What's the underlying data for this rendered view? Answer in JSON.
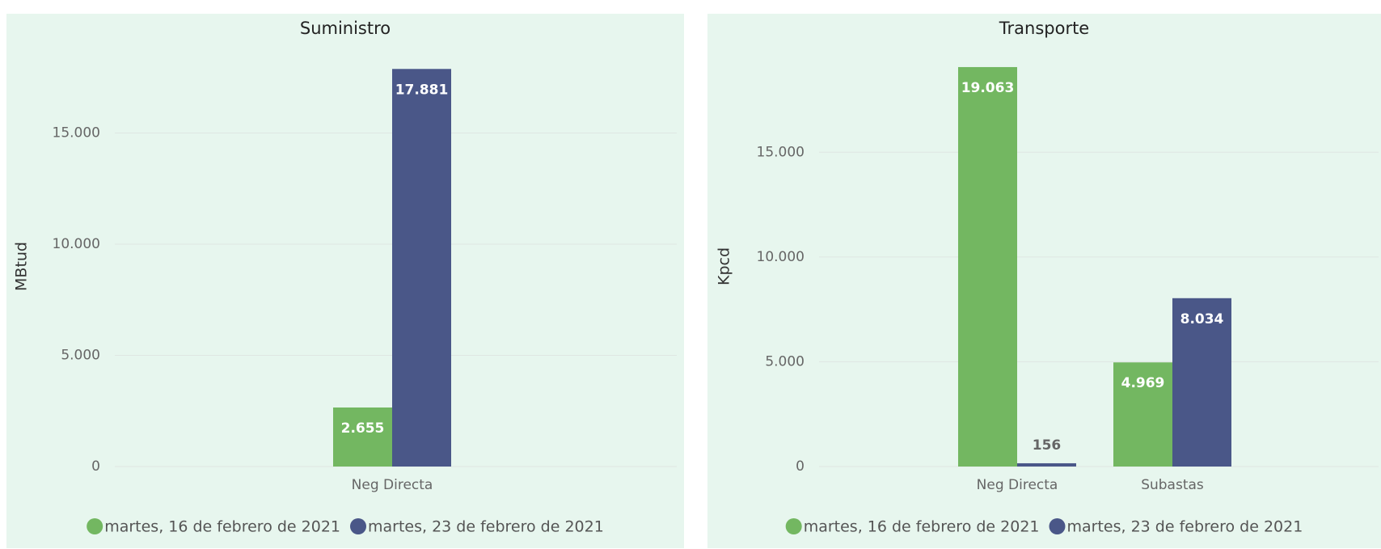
{
  "chart_data": [
    {
      "type": "bar",
      "title": "Suministro",
      "y_label": "MBtud",
      "categories": [
        "Neg Directa"
      ],
      "series": [
        {
          "name": "martes, 16 de febrero de 2021",
          "color": "#73b761",
          "values": [
            2655
          ],
          "value_labels": [
            "2.655"
          ]
        },
        {
          "name": "martes, 23 de febrero de 2021",
          "color": "#4a5788",
          "values": [
            17881
          ],
          "value_labels": [
            "17.881"
          ]
        }
      ],
      "ylim": [
        0,
        18000
      ],
      "yticks": [
        0,
        {
          "value": 5000,
          "label": "5.000"
        },
        {
          "value": 10000,
          "label": "10.000"
        },
        {
          "value": 15000,
          "label": "15.000"
        }
      ],
      "grid": true
    },
    {
      "type": "bar",
      "title": "Transporte",
      "y_label": "Kpcd",
      "categories": [
        "Neg Directa",
        "Subastas"
      ],
      "series": [
        {
          "name": "martes, 16 de febrero de 2021",
          "color": "#73b761",
          "values": [
            19063,
            4969
          ],
          "value_labels": [
            "19.063",
            "4.969"
          ]
        },
        {
          "name": "martes, 23 de febrero de 2021",
          "color": "#4a5788",
          "values": [
            156,
            8034
          ],
          "value_labels": [
            "156",
            "8.034"
          ]
        }
      ],
      "ylim": [
        0,
        19100
      ],
      "yticks": [
        0,
        {
          "value": 5000,
          "label": "5.000"
        },
        {
          "value": 10000,
          "label": "10.000"
        },
        {
          "value": 15000,
          "label": "15.000"
        }
      ],
      "grid": true
    }
  ]
}
